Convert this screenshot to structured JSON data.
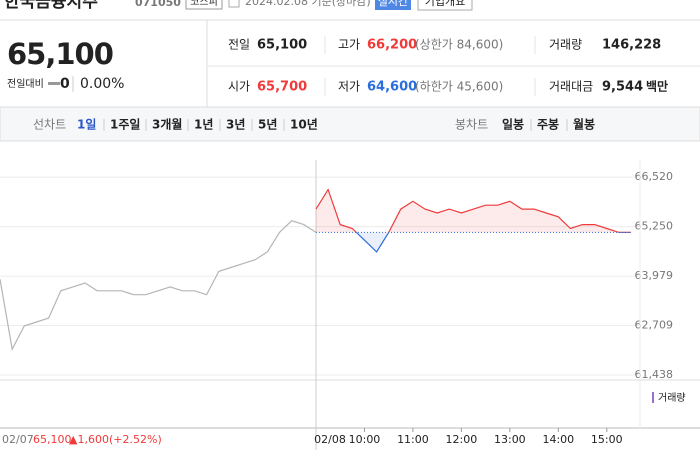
{
  "header": {
    "name": "한국금융지주",
    "code": "071050",
    "market": "코스피",
    "date": "2024.02.08 기준(장마감)",
    "realtime": "실시간",
    "overview": "기업개요"
  },
  "quote": {
    "price": "65,100",
    "change_label": "전일대비",
    "change": "0",
    "change_rate": "0.00%"
  },
  "summary": {
    "rows": [
      [
        {
          "label": "전일",
          "value": "65,100",
          "color": "#222"
        },
        {
          "label": "고가",
          "value": "66,200",
          "color": "#f03a3a",
          "limit": "(상한가 84,600)"
        },
        {
          "label": "거래량",
          "value": "146,228",
          "color": "#222"
        }
      ],
      [
        {
          "label": "시가",
          "value": "65,700",
          "color": "#f03a3a"
        },
        {
          "label": "저가",
          "value": "64,600",
          "color": "#2a6ede",
          "limit": "(하한가 45,600)"
        },
        {
          "label": "거래대금",
          "value": "9,544",
          "unit": "백만",
          "color": "#222"
        }
      ]
    ]
  },
  "tabs": {
    "line_label": "선차트",
    "line": [
      "1일",
      "1주일",
      "3개월",
      "1년",
      "3년",
      "5년",
      "10년"
    ],
    "candle_label": "봉차트",
    "candle": [
      "일봉",
      "주봉",
      "월봉"
    ]
  },
  "chart_data": {
    "type": "line",
    "ylim": [
      61310,
      66960
    ],
    "yticks": [
      {
        "value": 66520,
        "label": "66,520"
      },
      {
        "value": 65250,
        "label": "65,250"
      },
      {
        "value": 63979,
        "label": "63,979"
      },
      {
        "value": 62709,
        "label": "62,709"
      },
      {
        "value": 61438,
        "label": "61,438"
      }
    ],
    "xlim": [
      9,
      15.5
    ],
    "xticks": [
      {
        "value": 10,
        "label": "10:00"
      },
      {
        "value": 11,
        "label": "11:00"
      },
      {
        "value": 12,
        "label": "12:00"
      },
      {
        "value": 13,
        "label": "13:00"
      },
      {
        "value": 14,
        "label": "14:00"
      },
      {
        "value": 15,
        "label": "15:00"
      }
    ],
    "baseline": 65100,
    "up_color": "#f03a3a",
    "down_color": "#2a6ede",
    "grid": true,
    "series": [
      {
        "color": "#b5b5b5",
        "x": [
          9,
          9.25,
          9.5,
          9.75,
          10,
          10.25,
          10.5,
          10.75,
          11,
          11.25,
          11.5,
          11.75,
          12,
          12.25,
          12.5,
          12.75,
          13,
          13.25,
          13.5,
          13.75,
          14,
          14.25,
          14.5,
          14.75,
          15,
          15.25,
          15.5
        ],
        "values": [
          63900,
          62100,
          62700,
          62800,
          62900,
          63600,
          63700,
          63800,
          63600,
          63600,
          63600,
          63500,
          63500,
          63600,
          63700,
          63600,
          63600,
          63500,
          64100,
          64200,
          64300,
          64400,
          64600,
          65100,
          65400,
          65300,
          65100
        ]
      },
      {
        "date": "02/08",
        "x": [
          9,
          9.25,
          9.5,
          9.75,
          10,
          10.25,
          10.5,
          10.75,
          11,
          11.25,
          11.5,
          11.75,
          12,
          12.25,
          12.5,
          12.75,
          13,
          13.25,
          13.5,
          13.75,
          14,
          14.25,
          14.5,
          14.75,
          15,
          15.25,
          15.5
        ],
        "values": [
          65700,
          66200,
          65300,
          65200,
          64900,
          64600,
          65100,
          65700,
          65900,
          65700,
          65600,
          65700,
          65600,
          65700,
          65800,
          65800,
          65900,
          65700,
          65700,
          65600,
          65500,
          65200,
          65300,
          65300,
          65200,
          65100,
          65100
        ]
      }
    ],
    "volume_label": "거래량",
    "previous_close": {
      "date": "02/07",
      "price": "65,100",
      "change": "▲1,600",
      "rate": "(+2.52%)"
    }
  }
}
